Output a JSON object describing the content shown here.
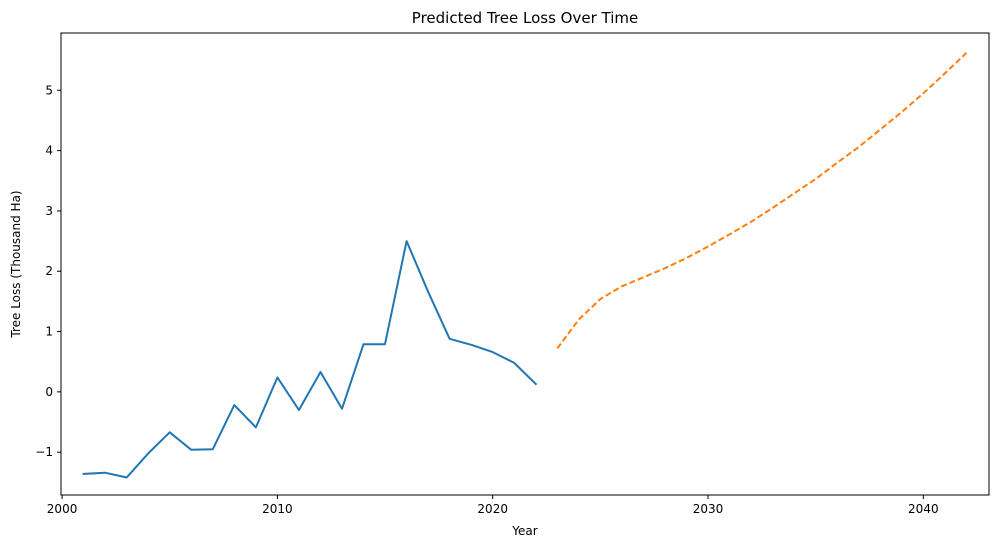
{
  "chart_data": {
    "type": "line",
    "title": "Predicted Tree Loss Over Time",
    "xlabel": "Year",
    "ylabel": "Tree Loss (Thousand Ha)",
    "xlim": [
      1999.95,
      2043.05
    ],
    "ylim": [
      -1.71,
      5.95
    ],
    "xticks": [
      2000,
      2010,
      2020,
      2030,
      2040
    ],
    "yticks": [
      -1,
      0,
      1,
      2,
      3,
      4,
      5
    ],
    "ytick_labels": [
      "−1",
      "0",
      "1",
      "2",
      "3",
      "4",
      "5"
    ],
    "grid": false,
    "series": [
      {
        "color": "#1f77b4",
        "style": "solid",
        "x": [
          2001,
          2002,
          2003,
          2004,
          2005,
          2006,
          2007,
          2008,
          2009,
          2010,
          2011,
          2012,
          2013,
          2014,
          2015,
          2016,
          2017,
          2018,
          2019,
          2020,
          2021,
          2022
        ],
        "y": [
          -1.36,
          -1.34,
          -1.42,
          -1.02,
          -0.67,
          -0.96,
          -0.95,
          -0.22,
          -0.59,
          0.24,
          -0.3,
          0.33,
          -0.28,
          0.79,
          0.79,
          2.5,
          1.66,
          0.88,
          0.78,
          0.66,
          0.48,
          0.13
        ]
      },
      {
        "color": "#ff7f0e",
        "style": "dashed",
        "x": [
          2023,
          2024,
          2025,
          2026,
          2027,
          2028,
          2029,
          2030,
          2031,
          2032,
          2033,
          2034,
          2035,
          2036,
          2037,
          2038,
          2039,
          2040,
          2041,
          2042
        ],
        "y": [
          0.72,
          1.2,
          1.54,
          1.75,
          1.9,
          2.05,
          2.22,
          2.41,
          2.61,
          2.82,
          3.05,
          3.29,
          3.53,
          3.8,
          4.06,
          4.35,
          4.64,
          4.95,
          5.28,
          5.62
        ]
      }
    ]
  }
}
